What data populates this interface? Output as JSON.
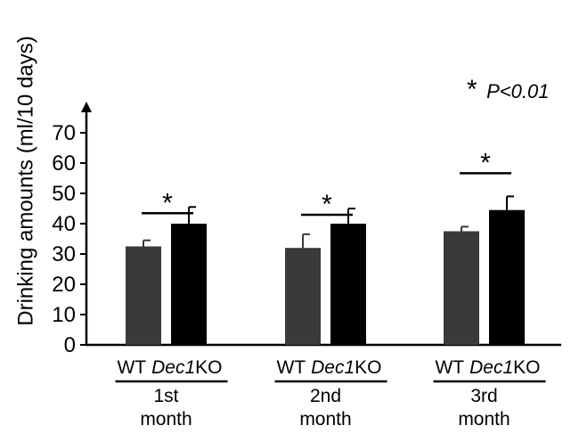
{
  "chart_data": {
    "type": "bar",
    "title": "",
    "ylabel": "Drinking amounts (ml/10 days)",
    "xlabel": "",
    "ylim": [
      0,
      80
    ],
    "yticks": [
      0,
      10,
      20,
      30,
      40,
      50,
      60,
      70
    ],
    "grid": false,
    "significance_note": {
      "symbol": "*",
      "text": "P<0.01"
    },
    "groups": [
      {
        "label_line1": "1st",
        "label_line2": "month",
        "bars": [
          {
            "genotype": "WT",
            "genotype_suffix": "",
            "value": 32.5,
            "error": 2,
            "color": "#3a3a3a"
          },
          {
            "genotype": "Dec1",
            "genotype_suffix": "KO",
            "value": 40,
            "error": 5.5,
            "color": "#000000"
          }
        ],
        "significant": true
      },
      {
        "label_line1": "2nd",
        "label_line2": "month",
        "bars": [
          {
            "genotype": "WT",
            "genotype_suffix": "",
            "value": 32,
            "error": 4.5,
            "color": "#3a3a3a"
          },
          {
            "genotype": "Dec1",
            "genotype_suffix": "KO",
            "value": 40,
            "error": 5,
            "color": "#000000"
          }
        ],
        "significant": true
      },
      {
        "label_line1": "3rd",
        "label_line2": "month",
        "bars": [
          {
            "genotype": "WT",
            "genotype_suffix": "",
            "value": 37.5,
            "error": 1.5,
            "color": "#3a3a3a"
          },
          {
            "genotype": "Dec1",
            "genotype_suffix": "KO",
            "value": 44.5,
            "error": 4.5,
            "color": "#000000"
          }
        ],
        "significant": true
      }
    ]
  }
}
